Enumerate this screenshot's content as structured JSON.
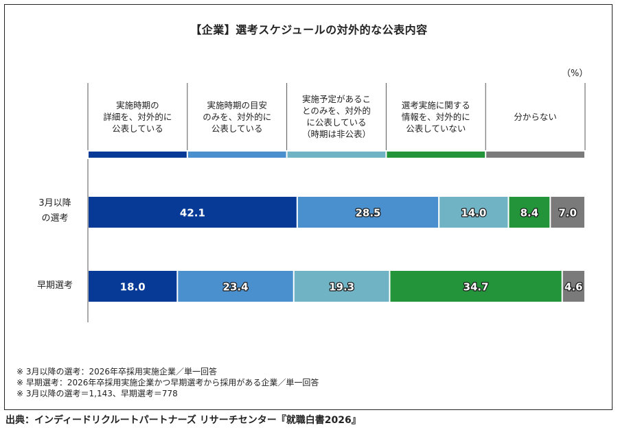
{
  "title": "【企業】選考スケジュールの対外的な公表内容",
  "unit_label": "（%）",
  "legend": [
    {
      "label": "実施時期の\n詳細を、対外的に\n公表している",
      "color": "#063a96"
    },
    {
      "label": "実施時期の目安\nのみを、対外的に\n公表している",
      "color": "#4a8fce"
    },
    {
      "label": "実施予定があるこ\nとのみを、対外的\nに公表している\n（時期は非公表）",
      "color": "#6fb3c4"
    },
    {
      "label": "選考実施に関する\n情報を、対外的に\n公表していない",
      "color": "#239439"
    },
    {
      "label": "分からない",
      "color": "#7a7a7a"
    }
  ],
  "chart_data": {
    "type": "bar",
    "orientation": "horizontal",
    "stacked": true,
    "title": "【企業】選考スケジュールの対外的な公表内容",
    "ylabel": "（%）",
    "categories": [
      "3月以降\nの選考",
      "早期選考"
    ],
    "series": [
      {
        "name": "実施時期の詳細を、対外的に公表している",
        "values": [
          42.1,
          18.0
        ]
      },
      {
        "name": "実施時期の目安のみを、対外的に公表している",
        "values": [
          28.5,
          23.4
        ]
      },
      {
        "name": "実施予定があることのみを、対外的に公表している（時期は非公表）",
        "values": [
          14.0,
          19.3
        ]
      },
      {
        "name": "選考実施に関する情報を、対外的に公表していない",
        "values": [
          8.4,
          34.7
        ]
      },
      {
        "name": "分からない",
        "values": [
          7.0,
          4.6
        ]
      }
    ],
    "xlim": [
      0,
      100
    ]
  },
  "notes": [
    "※ 3月以降の選考：2026年卒採用実施企業／単一回答",
    "※ 早期選考：2026年卒採用実施企業かつ早期選考から採用がある企業／単一回答",
    "※ 3月以降の選考＝1,143、早期選考＝778"
  ],
  "source": "出典：インディードリクルートパートナーズ リサーチセンター『就職白書2026』"
}
